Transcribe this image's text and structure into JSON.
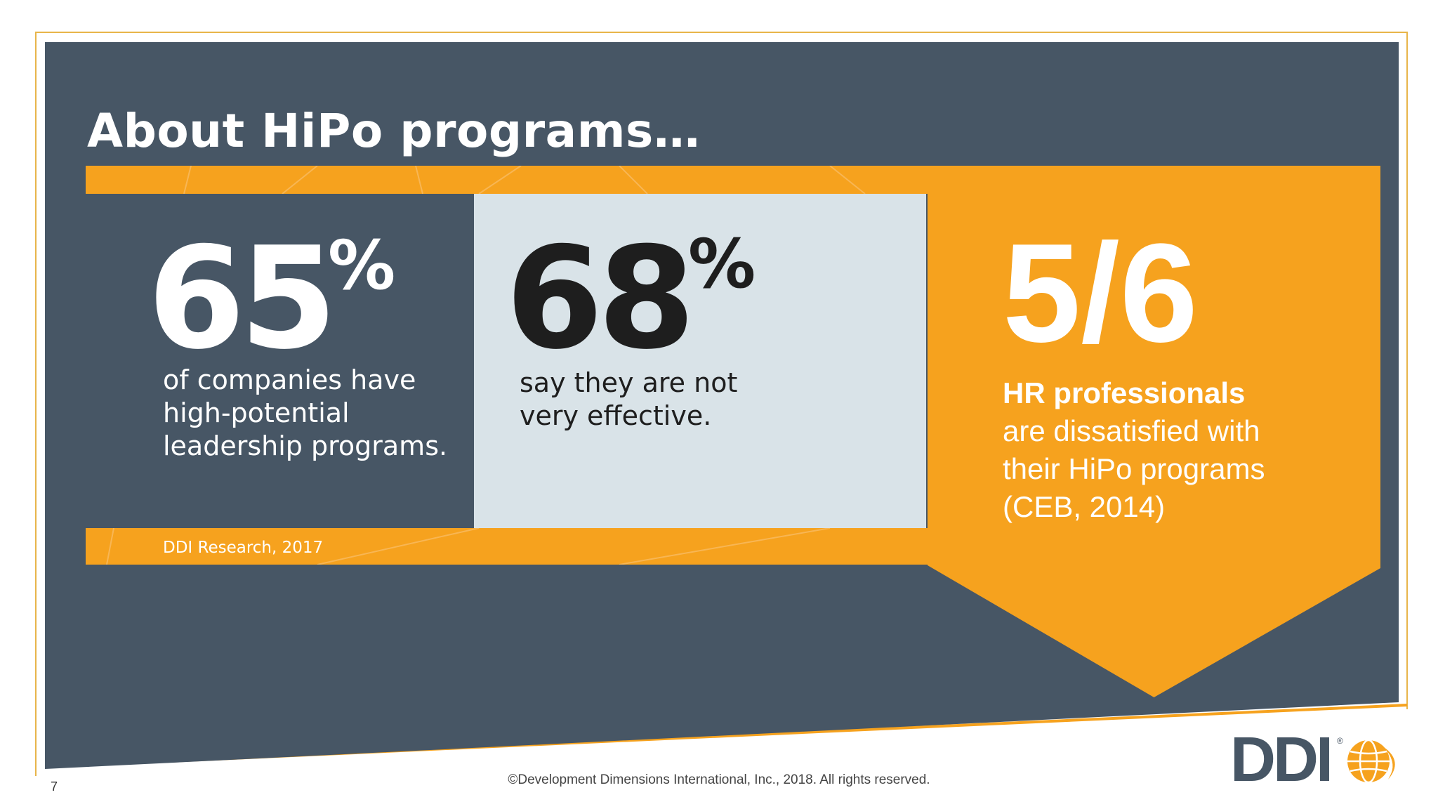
{
  "slide": {
    "title": "About HiPo programs…",
    "number": "7",
    "copyright": "©Development Dimensions International, Inc., 2018. All rights reserved."
  },
  "stats": [
    {
      "number": "65",
      "unit": "%",
      "text_lines": [
        "of companies have",
        "high-potential",
        "leadership programs."
      ]
    },
    {
      "number": "68",
      "unit": "%",
      "text_lines": [
        "say they are not",
        "very effective."
      ]
    }
  ],
  "source": "DDI Research, 2017",
  "callout": {
    "number": "5/6",
    "strong": "HR professionals",
    "text_lines": [
      "are dissatisfied with",
      "their HiPo programs",
      "(CEB, 2014)"
    ]
  },
  "logo": {
    "text": "DDI",
    "reg": "®"
  },
  "colors": {
    "slate": "#475665",
    "orange": "#f6a21e",
    "light_panel": "#d9e3e8",
    "gold_line": "#e8b54a",
    "white": "#ffffff",
    "dark_text": "#1e1e1e"
  }
}
